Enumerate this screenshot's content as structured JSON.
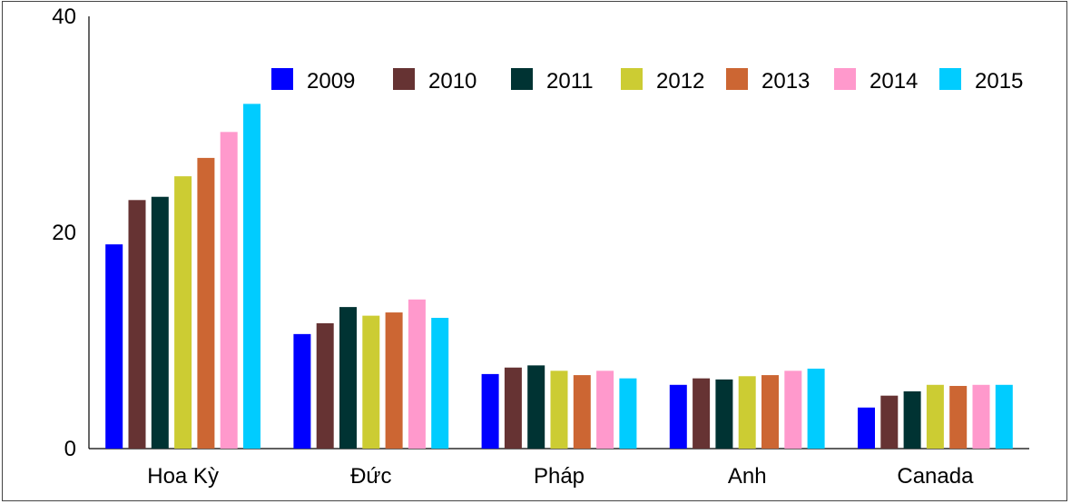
{
  "chart_data": {
    "type": "bar",
    "categories": [
      "Hoa Kỳ",
      "Đức",
      "Pháp",
      "Anh",
      "Canada"
    ],
    "ylim": [
      0,
      40
    ],
    "yticks": [
      0,
      20,
      40
    ],
    "grid": false,
    "legend_position": "top-right",
    "series": [
      {
        "name": "2009",
        "color": "#0000ff",
        "values": [
          18.9,
          10.6,
          6.9,
          5.9,
          3.8
        ]
      },
      {
        "name": "2010",
        "color": "#663333",
        "values": [
          23.0,
          11.6,
          7.5,
          6.5,
          4.9
        ]
      },
      {
        "name": "2011",
        "color": "#003333",
        "values": [
          23.3,
          13.1,
          7.7,
          6.4,
          5.3
        ]
      },
      {
        "name": "2012",
        "color": "#cccc33",
        "values": [
          25.2,
          12.3,
          7.2,
          6.7,
          5.9
        ]
      },
      {
        "name": "2013",
        "color": "#cc6633",
        "values": [
          26.9,
          12.6,
          6.8,
          6.8,
          5.8
        ]
      },
      {
        "name": "2014",
        "color": "#ff99cc",
        "values": [
          29.3,
          13.8,
          7.2,
          7.2,
          5.9
        ]
      },
      {
        "name": "2015",
        "color": "#00ccff",
        "values": [
          31.9,
          12.1,
          6.5,
          7.4,
          5.9
        ]
      }
    ]
  }
}
